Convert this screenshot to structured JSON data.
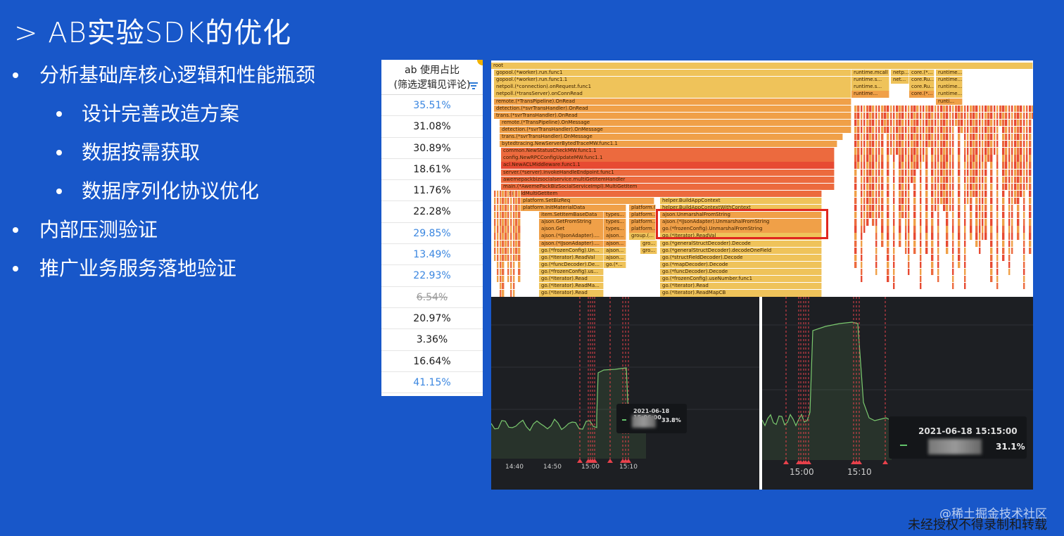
{
  "slide": {
    "title": "> AB实验SDK的优化",
    "bullets": [
      {
        "text": "分析基础库核心逻辑和性能瓶颈",
        "level": 1
      },
      {
        "text": "设计完善改造方案",
        "level": 2
      },
      {
        "text": "数据按需获取",
        "level": 2
      },
      {
        "text": "数据序列化协议优化",
        "level": 2
      },
      {
        "text": "内部压测验证",
        "level": 1
      },
      {
        "text": "推广业务服务落地验证",
        "level": 1
      }
    ],
    "footer": "未经授权不得录制和转载",
    "brand_watermark": "@稀土掘金技术社区"
  },
  "table": {
    "header_line1": "ab 使用占比",
    "header_line2": "(筛选逻辑见评论)",
    "rows": [
      {
        "value": "35.51%",
        "style": "blue"
      },
      {
        "value": "31.08%",
        "style": "normal"
      },
      {
        "value": "30.89%",
        "style": "normal"
      },
      {
        "value": "18.61%",
        "style": "normal"
      },
      {
        "value": "11.76%",
        "style": "normal"
      },
      {
        "value": "22.28%",
        "style": "normal"
      },
      {
        "value": "29.85%",
        "style": "blue"
      },
      {
        "value": "13.49%",
        "style": "blue"
      },
      {
        "value": "22.93%",
        "style": "blue"
      },
      {
        "value": "6.54%",
        "style": "strike"
      },
      {
        "value": "20.97%",
        "style": "normal"
      },
      {
        "value": "3.36%",
        "style": "normal"
      },
      {
        "value": "16.64%",
        "style": "normal"
      },
      {
        "value": "41.15%",
        "style": "blue"
      }
    ]
  },
  "flamegraph": {
    "frames": [
      "root",
      "gopool.(*worker).run.func1",
      "gopool.(*worker).run.func1.1",
      "netpoll.(*connection).onRequest.func1",
      "netpoll.(*transServer).onConnRead",
      "remote.(*TransPipeline).OnRead",
      "detection.(*svrTransHandler).OnRead",
      "trans.(*svrTransHandler).OnRead",
      "remote.(*TransPipeline).OnMessage",
      "detection.(*svrTransHandler).OnMessage",
      "trans.(*svrTransHandler).OnMessage",
      "bytedtracing.NewServerBytedTraceMW.func1.1",
      "common.NewStatusCheckMW.func1.1",
      "config.NewRPCConfigUpdateMW.func1.1",
      "acl.NewACLMiddleware.func1.1",
      "server.(*server).invokeHandleEndpoint.func1",
      "awemepackbizsocialservice.multiGetItemHandler",
      "main.(*AwemePackBizSocialServiceImpl).MultiGetItem",
      "main.OldMultiGetItem",
      "platform.SetBizReq",
      "helper.BuildAppContext",
      "platform.InitMaterialData",
      "platform.G...",
      "helper.BuildAppContextWithContext",
      "item.SetItemBaseData",
      "types....",
      "platform....",
      "ajson.UnmarshalFromString",
      "ajson.GetFromString",
      "ajson.(*IJsonAdapter).UnmarshalFromString",
      "ajson.Get",
      "go.(*frozenConfig).UnmarshalFromString",
      "ajson.(*IJsonAdapter)....",
      "group.(...",
      "go.(*Iterator).ReadVal",
      "go.(*generalStructDecoder).Decode",
      "go.(*frozenConfig).Un...",
      "go.(*generalStructDecoder).decodeOneField",
      "go.(*structFieldDecoder).Decode",
      "go.(*funcDecoder).De...",
      "go.(*mapDecoder).Decode",
      "go.(*frozenConfig).us...",
      "go.(*funcDecoder).Decode",
      "go.(*frozenConfig).useNumber.func1",
      "go.(*Iterator).Read",
      "go.(*Iterator).ReadMa...",
      "go.(*Iterator).ReadMapCB",
      "runtime.mcall",
      "runtime.s...",
      "runtime...",
      "netp...",
      "net...",
      "core.(*...",
      "core.Ru...",
      "core.(*...",
      "runti...",
      "types...",
      "ajson...",
      "gro...",
      "go.(*..."
    ],
    "highlight": "ajson.UnmarshalFromString"
  },
  "monitors": [
    {
      "x_ticks": [
        "14:40",
        "14:50",
        "15:00",
        "15:10"
      ],
      "tooltip_time": "2021-06-18 15:06:00",
      "tooltip_value": "33.8%"
    },
    {
      "x_ticks": [
        "15:00",
        "15:10"
      ],
      "tooltip_time": "2021-06-18 15:15:00",
      "tooltip_value": "31.1%"
    }
  ],
  "colors": {
    "background": "#1857c9",
    "flame_yellow": "#f0c75e",
    "flame_orange": "#f08a3e",
    "flame_red": "#ec5a3a",
    "series_green": "#7bc96f",
    "marker_red": "#e8414b",
    "highlight_box": "#e0261f"
  }
}
